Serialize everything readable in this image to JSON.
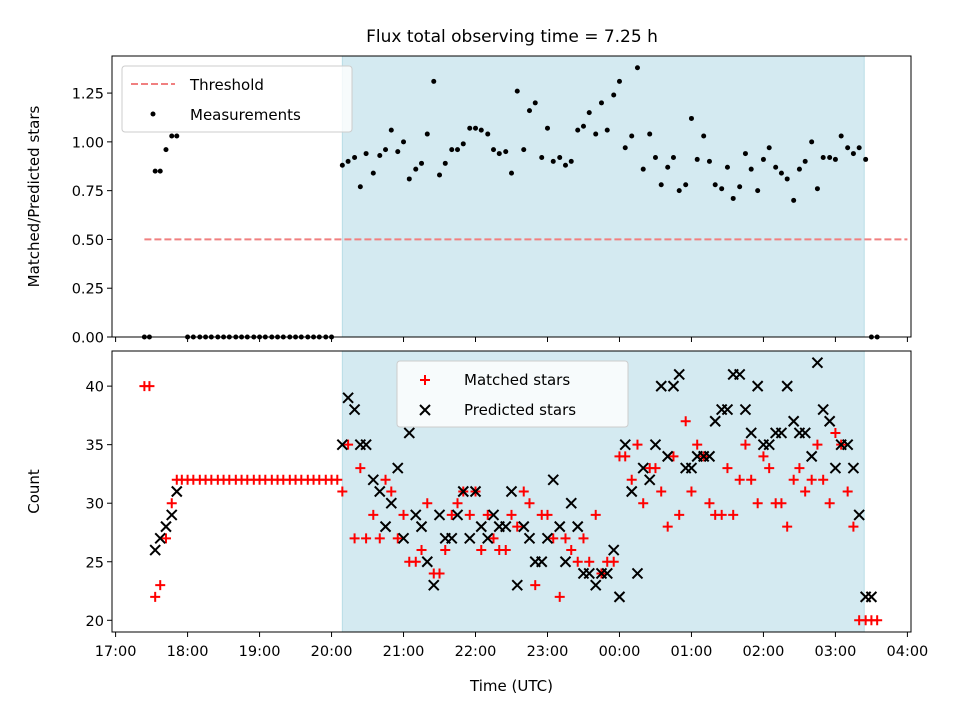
{
  "figure": {
    "title": "Flux total observing time = 7.25 h"
  },
  "chart_data": [
    {
      "type": "scatter",
      "ylabel": "Matched/Predicted stars",
      "xlabel": "",
      "xlim": [
        16.95,
        28.05
      ],
      "ylim": [
        0,
        1.44
      ],
      "yticks": [
        0,
        0.25,
        0.5,
        0.75,
        1.0,
        1.25
      ],
      "ytick_labels": [
        "0.00",
        "0.25",
        "0.50",
        "0.75",
        "1.00",
        "1.25"
      ],
      "shaded_span": [
        20.15,
        27.4
      ],
      "shade_color": "#d4eaf1",
      "threshold": {
        "name": "Threshold",
        "y": 0.5,
        "x": [
          17.4,
          28.0
        ],
        "color": "#f08080"
      },
      "legend": {
        "position": "top-left",
        "entries": [
          "Threshold",
          "Measurements"
        ]
      },
      "series": [
        {
          "name": "Measurements",
          "color": "#000000",
          "x": [
            17.4,
            17.47,
            17.55,
            17.62,
            17.7,
            17.78,
            17.85,
            18.0,
            18.08,
            18.17,
            18.25,
            18.33,
            18.42,
            18.5,
            18.58,
            18.67,
            18.75,
            18.83,
            18.92,
            19.0,
            19.08,
            19.17,
            19.25,
            19.33,
            19.42,
            19.5,
            19.58,
            19.67,
            19.75,
            19.83,
            19.92,
            20.0,
            20.15,
            20.23,
            20.32,
            20.4,
            20.48,
            20.58,
            20.67,
            20.75,
            20.83,
            20.92,
            21.0,
            21.08,
            21.17,
            21.25,
            21.33,
            21.42,
            21.5,
            21.58,
            21.67,
            21.75,
            21.83,
            21.92,
            22.0,
            22.08,
            22.17,
            22.25,
            22.33,
            22.42,
            22.5,
            22.58,
            22.67,
            22.75,
            22.83,
            22.92,
            23.0,
            23.08,
            23.17,
            23.25,
            23.33,
            23.42,
            23.5,
            23.58,
            23.67,
            23.75,
            23.83,
            23.92,
            24.0,
            24.08,
            24.17,
            24.25,
            24.33,
            24.42,
            24.5,
            24.58,
            24.67,
            24.75,
            24.83,
            24.92,
            25.0,
            25.08,
            25.17,
            25.25,
            25.33,
            25.42,
            25.5,
            25.58,
            25.67,
            25.75,
            25.83,
            25.92,
            26.0,
            26.08,
            26.17,
            26.25,
            26.33,
            26.42,
            26.5,
            26.58,
            26.67,
            26.75,
            26.83,
            26.92,
            27.0,
            27.08,
            27.17,
            27.25,
            27.33,
            27.42,
            27.5,
            27.58
          ],
          "values": [
            0.0,
            0.0,
            0.85,
            0.85,
            0.96,
            1.03,
            1.03,
            0.0,
            0.0,
            0.0,
            0.0,
            0.0,
            0.0,
            0.0,
            0.0,
            0.0,
            0.0,
            0.0,
            0.0,
            0.0,
            0.0,
            0.0,
            0.0,
            0.0,
            0.0,
            0.0,
            0.0,
            0.0,
            0.0,
            0.0,
            0.0,
            0.0,
            0.88,
            0.9,
            0.92,
            0.77,
            0.94,
            0.84,
            0.93,
            0.96,
            1.06,
            0.95,
            1.0,
            0.81,
            0.86,
            0.89,
            1.04,
            1.31,
            0.83,
            0.89,
            0.96,
            0.96,
            0.99,
            1.07,
            1.07,
            1.06,
            1.04,
            0.96,
            0.94,
            0.95,
            0.84,
            1.26,
            0.96,
            1.16,
            1.2,
            0.92,
            1.07,
            0.9,
            0.92,
            0.88,
            0.9,
            1.06,
            1.08,
            1.15,
            1.04,
            1.2,
            1.06,
            1.24,
            1.31,
            0.97,
            1.03,
            1.38,
            0.86,
            1.04,
            0.92,
            0.78,
            0.87,
            0.92,
            0.75,
            0.78,
            1.12,
            0.91,
            1.03,
            0.9,
            0.78,
            0.76,
            0.87,
            0.71,
            0.77,
            0.94,
            0.86,
            0.75,
            0.91,
            0.97,
            0.87,
            0.84,
            0.81,
            0.7,
            0.86,
            0.9,
            1.0,
            0.76,
            0.92,
            0.92,
            0.91,
            1.03,
            0.97,
            0.94,
            0.97,
            0.91,
            0.0,
            0.0
          ]
        }
      ]
    },
    {
      "type": "scatter",
      "ylabel": "Count",
      "xlabel": "Time (UTC)",
      "xlim": [
        16.95,
        28.05
      ],
      "ylim": [
        19,
        43
      ],
      "yticks": [
        20,
        25,
        30,
        35,
        40
      ],
      "ytick_labels": [
        "20",
        "25",
        "30",
        "35",
        "40"
      ],
      "xticks": [
        17,
        18,
        19,
        20,
        21,
        22,
        23,
        24,
        25,
        26,
        27,
        28
      ],
      "xtick_labels": [
        "17:00",
        "18:00",
        "19:00",
        "20:00",
        "21:00",
        "22:00",
        "23:00",
        "00:00",
        "01:00",
        "02:00",
        "03:00",
        "04:00"
      ],
      "shaded_span": [
        20.15,
        27.4
      ],
      "shade_color": "#d4eaf1",
      "legend": {
        "position": "top-center",
        "entries": [
          "Matched stars",
          "Predicted stars"
        ]
      },
      "series": [
        {
          "name": "Matched stars",
          "marker": "plus",
          "color": "#ff0000",
          "x": [
            17.4,
            17.47,
            17.55,
            17.62,
            17.7,
            17.78,
            17.85,
            17.92,
            18.0,
            18.08,
            18.17,
            18.25,
            18.33,
            18.42,
            18.5,
            18.58,
            18.67,
            18.75,
            18.83,
            18.92,
            19.0,
            19.08,
            19.17,
            19.25,
            19.33,
            19.42,
            19.5,
            19.58,
            19.67,
            19.75,
            19.83,
            19.92,
            20.0,
            20.08,
            20.15,
            20.23,
            20.32,
            20.4,
            20.48,
            20.58,
            20.67,
            20.75,
            20.83,
            20.92,
            21.0,
            21.08,
            21.17,
            21.25,
            21.33,
            21.42,
            21.5,
            21.58,
            21.67,
            21.75,
            21.83,
            21.92,
            22.0,
            22.08,
            22.17,
            22.25,
            22.33,
            22.42,
            22.5,
            22.58,
            22.67,
            22.75,
            22.83,
            22.92,
            23.0,
            23.08,
            23.17,
            23.25,
            23.33,
            23.42,
            23.5,
            23.58,
            23.67,
            23.75,
            23.83,
            23.92,
            24.0,
            24.08,
            24.17,
            24.25,
            24.33,
            24.42,
            24.5,
            24.58,
            24.67,
            24.75,
            24.83,
            24.92,
            25.0,
            25.08,
            25.17,
            25.25,
            25.33,
            25.42,
            25.5,
            25.58,
            25.67,
            25.75,
            25.83,
            25.92,
            26.0,
            26.08,
            26.17,
            26.25,
            26.33,
            26.42,
            26.5,
            26.58,
            26.67,
            26.75,
            26.83,
            26.92,
            27.0,
            27.08,
            27.17,
            27.25,
            27.33,
            27.42,
            27.5,
            27.58
          ],
          "values": [
            40,
            40,
            22,
            23,
            27,
            30,
            32,
            32,
            32,
            32,
            32,
            32,
            32,
            32,
            32,
            32,
            32,
            32,
            32,
            32,
            32,
            32,
            32,
            32,
            32,
            32,
            32,
            32,
            32,
            32,
            32,
            32,
            32,
            32,
            31,
            35,
            27,
            33,
            27,
            29,
            27,
            32,
            31,
            27,
            29,
            25,
            25,
            26,
            30,
            24,
            24,
            26,
            29,
            30,
            31,
            29,
            31,
            26,
            29,
            27,
            26,
            26,
            29,
            28,
            31,
            30,
            23,
            29,
            29,
            27,
            22,
            27,
            26,
            25,
            27,
            25,
            29,
            24,
            25,
            25,
            34,
            34,
            32,
            35,
            30,
            33,
            33,
            31,
            28,
            34,
            29,
            37,
            31,
            35,
            34,
            30,
            29,
            29,
            33,
            29,
            32,
            35,
            32,
            30,
            34,
            33,
            30,
            30,
            28,
            32,
            33,
            31,
            32,
            35,
            32,
            30,
            36,
            35,
            31,
            28,
            20,
            20,
            20,
            20
          ],
          "notes": "values read off plot"
        },
        {
          "name": "Predicted stars",
          "marker": "x",
          "color": "#000000",
          "x": [
            17.55,
            17.62,
            17.7,
            17.78,
            17.85,
            20.15,
            20.23,
            20.32,
            20.4,
            20.48,
            20.58,
            20.67,
            20.75,
            20.83,
            20.92,
            21.0,
            21.08,
            21.17,
            21.25,
            21.33,
            21.42,
            21.5,
            21.58,
            21.67,
            21.75,
            21.83,
            21.92,
            22.0,
            22.08,
            22.17,
            22.25,
            22.33,
            22.42,
            22.5,
            22.58,
            22.67,
            22.75,
            22.83,
            22.92,
            23.0,
            23.08,
            23.17,
            23.25,
            23.33,
            23.42,
            23.5,
            23.58,
            23.67,
            23.75,
            23.83,
            23.92,
            24.0,
            24.08,
            24.17,
            24.25,
            24.33,
            24.42,
            24.5,
            24.58,
            24.67,
            24.75,
            24.83,
            24.92,
            25.0,
            25.08,
            25.17,
            25.25,
            25.33,
            25.42,
            25.5,
            25.58,
            25.67,
            25.75,
            25.83,
            25.92,
            26.0,
            26.08,
            26.17,
            26.25,
            26.33,
            26.42,
            26.5,
            26.58,
            26.67,
            26.75,
            26.83,
            26.92,
            27.0,
            27.08,
            27.17,
            27.25,
            27.33,
            27.42,
            27.5
          ],
          "values": [
            26,
            27,
            28,
            29,
            31,
            35,
            39,
            38,
            35,
            35,
            32,
            31,
            28,
            30,
            33,
            27,
            36,
            29,
            28,
            25,
            23,
            29,
            27,
            27,
            29,
            31,
            27,
            31,
            28,
            27,
            29,
            28,
            28,
            31,
            23,
            28,
            27,
            25,
            25,
            27,
            32,
            28,
            25,
            30,
            28,
            24,
            24,
            23,
            24,
            24,
            26,
            22,
            35,
            31,
            24,
            33,
            32,
            35,
            40,
            34,
            40,
            41,
            33,
            33,
            34,
            34,
            34,
            37,
            38,
            38,
            41,
            41,
            38,
            36,
            40,
            35,
            35,
            36,
            36,
            40,
            37,
            36,
            36,
            34,
            42,
            38,
            37,
            33,
            35,
            35,
            33,
            29,
            22,
            22
          ],
          "notes": "values read off plot"
        }
      ]
    }
  ]
}
